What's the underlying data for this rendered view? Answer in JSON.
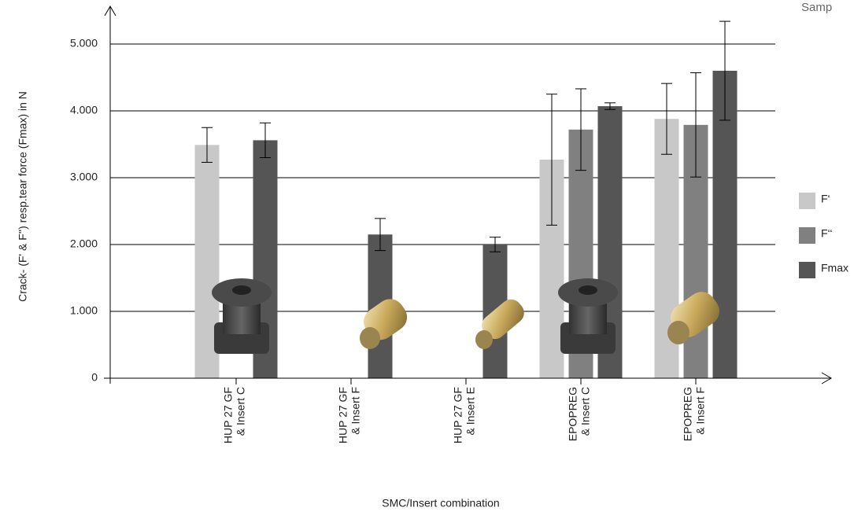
{
  "chart_data": {
    "type": "bar",
    "x_label": "SMC/Insert combination",
    "y_label": "Crack- (F' & F'') resp.tear force (Fmax) in N",
    "annotation": "Samp",
    "categories": [
      [
        "HUP 27 GF",
        "& Insert C"
      ],
      [
        "HUP 27 GF",
        "& Insert F"
      ],
      [
        "HUP 27 GF",
        "& Insert E"
      ],
      [
        "EPOPREG",
        "& Insert C"
      ],
      [
        "EPOPREG",
        "& Insert F"
      ]
    ],
    "series": [
      {
        "name": "F‘",
        "color": "#c8c8c8",
        "values": [
          3490,
          null,
          null,
          3270,
          3880
        ],
        "errors": [
          260,
          null,
          null,
          980,
          530
        ]
      },
      {
        "name": "F‘‘",
        "color": "#808080",
        "values": [
          null,
          null,
          null,
          3720,
          3790
        ],
        "errors": [
          null,
          null,
          null,
          610,
          780
        ]
      },
      {
        "name": "Fmax",
        "color": "#555555",
        "values": [
          3560,
          2150,
          2000,
          4070,
          4600
        ],
        "errors": [
          260,
          240,
          110,
          50,
          740
        ]
      }
    ],
    "ylim": [
      0,
      5500
    ],
    "yticks": [
      0,
      {
        "value": 1000,
        "label": "1.000"
      },
      {
        "value": 2000,
        "label": "2.000"
      },
      {
        "value": 3000,
        "label": "3.000"
      },
      {
        "value": 4000,
        "label": "4.000"
      },
      {
        "value": 5000,
        "label": "5.000"
      }
    ],
    "grid": true
  }
}
